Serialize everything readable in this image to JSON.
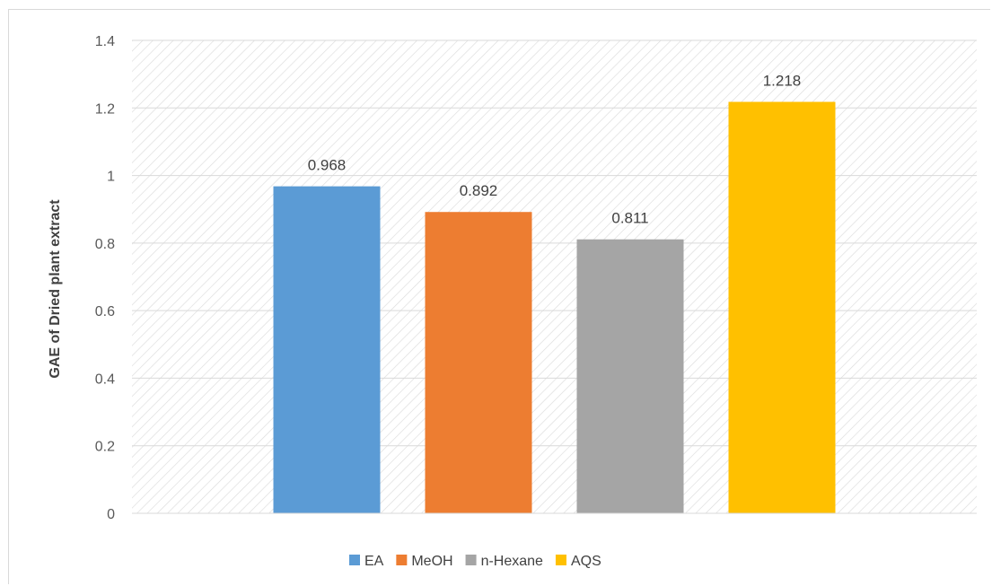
{
  "chart_data": {
    "type": "bar",
    "categories": [
      "EA",
      "MeOH",
      "n-Hexane",
      "AQS"
    ],
    "values": [
      0.968,
      0.892,
      0.811,
      1.218
    ],
    "data_labels": [
      "0.968",
      "0.892",
      "0.811",
      "1.218"
    ],
    "colors": [
      "#5b9bd5",
      "#ed7d31",
      "#a5a5a5",
      "#ffc000"
    ],
    "ylabel": "GAE of Dried plant extract",
    "xlabel": "",
    "ylim": [
      0,
      1.4
    ],
    "yticks": [
      0,
      0.2,
      0.4,
      0.6,
      0.8,
      1,
      1.2,
      1.4
    ],
    "ytick_labels": [
      "0",
      "0.2",
      "0.4",
      "0.6",
      "0.8",
      "1",
      "1.2",
      "1.4"
    ],
    "grid": true,
    "plot_background": "diagonal-hatch",
    "legend": {
      "placement": "bottom",
      "entries": [
        "EA",
        "MeOH",
        "n-Hexane",
        "AQS"
      ]
    }
  }
}
